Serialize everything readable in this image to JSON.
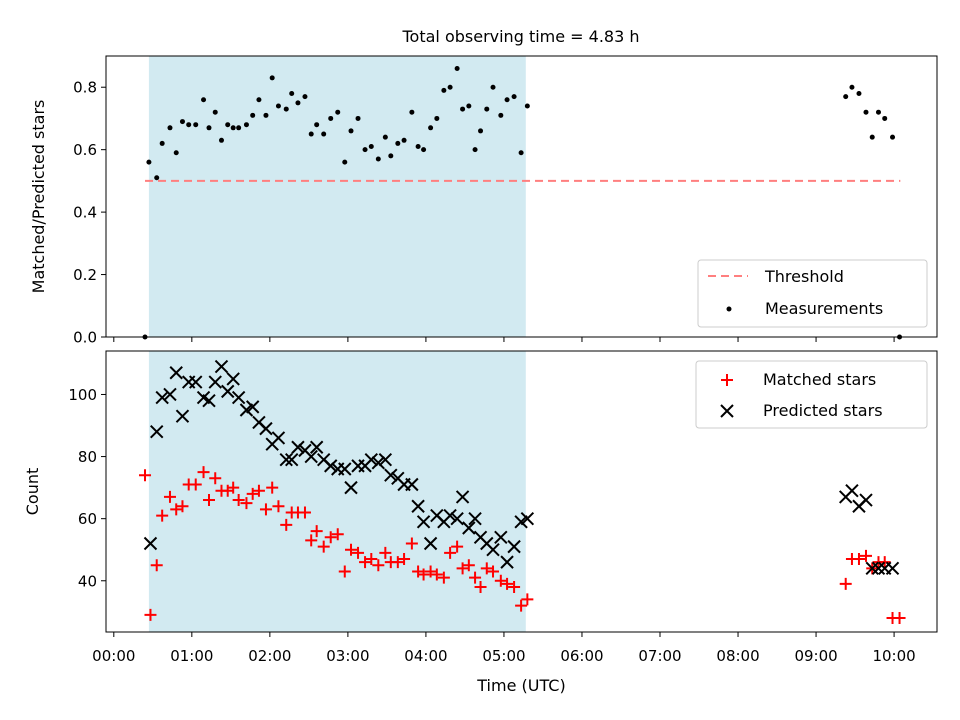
{
  "title": "Total observing time = 4.83 h",
  "colors": {
    "shade": "#add8e6",
    "threshold": "#ff7f7f",
    "matched": "#ff0000",
    "predicted": "#000000",
    "measurement": "#000000"
  },
  "chart_data": [
    {
      "type": "scatter",
      "panel": "top",
      "ylabel": "Matched/Predicted stars",
      "xlim": [
        -0.1,
        10.55
      ],
      "ylim": [
        0,
        0.9
      ],
      "yticks": [
        0.0,
        0.2,
        0.4,
        0.6,
        0.8
      ],
      "ytick_labels": [
        "0.0",
        "0.2",
        "0.4",
        "0.6",
        "0.8"
      ],
      "grid": false,
      "legend_position": "lower right",
      "shaded_interval": [
        0.45,
        5.28
      ],
      "threshold": {
        "name": "Threshold",
        "y": 0.5,
        "x": [
          0.4,
          10.08
        ]
      },
      "series": [
        {
          "name": "Measurements",
          "marker": "dot",
          "x": [
            0.4,
            0.45,
            0.55,
            0.62,
            0.72,
            0.8,
            0.88,
            0.96,
            1.05,
            1.15,
            1.22,
            1.3,
            1.38,
            1.46,
            1.53,
            1.6,
            1.7,
            1.78,
            1.86,
            1.95,
            2.03,
            2.11,
            2.21,
            2.28,
            2.36,
            2.45,
            2.53,
            2.6,
            2.69,
            2.78,
            2.87,
            2.96,
            3.04,
            3.13,
            3.22,
            3.3,
            3.39,
            3.48,
            3.55,
            3.64,
            3.72,
            3.82,
            3.9,
            3.97,
            4.06,
            4.14,
            4.23,
            4.31,
            4.4,
            4.47,
            4.55,
            4.63,
            4.7,
            4.78,
            4.86,
            4.96,
            5.04,
            5.13,
            5.22,
            5.3,
            9.38,
            9.46,
            9.55,
            9.64,
            9.72,
            9.8,
            9.88,
            9.98,
            10.07
          ],
          "y": [
            0.0,
            0.56,
            0.51,
            0.62,
            0.67,
            0.59,
            0.69,
            0.68,
            0.68,
            0.76,
            0.67,
            0.72,
            0.63,
            0.68,
            0.67,
            0.67,
            0.68,
            0.71,
            0.76,
            0.71,
            0.83,
            0.74,
            0.73,
            0.78,
            0.75,
            0.77,
            0.65,
            0.68,
            0.65,
            0.7,
            0.72,
            0.56,
            0.66,
            0.7,
            0.6,
            0.61,
            0.57,
            0.64,
            0.58,
            0.62,
            0.63,
            0.72,
            0.61,
            0.6,
            0.67,
            0.7,
            0.79,
            0.8,
            0.86,
            0.73,
            0.74,
            0.6,
            0.66,
            0.73,
            0.8,
            0.71,
            0.76,
            0.77,
            0.59,
            0.74,
            0.77,
            0.8,
            0.78,
            0.72,
            0.64,
            0.72,
            0.7,
            0.64,
            0.0
          ]
        }
      ]
    },
    {
      "type": "scatter",
      "panel": "bottom",
      "xlabel": "Time (UTC)",
      "ylabel": "Count",
      "xlim": [
        -0.1,
        10.55
      ],
      "ylim": [
        23.5,
        114
      ],
      "xticks": [
        0,
        1,
        2,
        3,
        4,
        5,
        6,
        7,
        8,
        9,
        10
      ],
      "xtick_labels": [
        "00:00",
        "01:00",
        "02:00",
        "03:00",
        "04:00",
        "05:00",
        "06:00",
        "07:00",
        "08:00",
        "09:00",
        "10:00"
      ],
      "yticks": [
        40,
        60,
        80,
        100
      ],
      "ytick_labels": [
        "40",
        "60",
        "80",
        "100"
      ],
      "grid": false,
      "legend_position": "upper right",
      "shaded_interval": [
        0.45,
        5.28
      ],
      "series": [
        {
          "name": "Matched stars",
          "marker": "plus",
          "x": [
            0.4,
            0.47,
            0.55,
            0.62,
            0.72,
            0.8,
            0.88,
            0.96,
            1.05,
            1.15,
            1.22,
            1.3,
            1.38,
            1.46,
            1.53,
            1.6,
            1.7,
            1.78,
            1.86,
            1.95,
            2.03,
            2.11,
            2.21,
            2.28,
            2.36,
            2.45,
            2.53,
            2.6,
            2.69,
            2.78,
            2.87,
            2.96,
            3.04,
            3.13,
            3.22,
            3.3,
            3.39,
            3.48,
            3.55,
            3.64,
            3.72,
            3.82,
            3.9,
            3.97,
            4.06,
            4.14,
            4.23,
            4.31,
            4.4,
            4.47,
            4.55,
            4.63,
            4.7,
            4.78,
            4.86,
            4.96,
            5.04,
            5.13,
            5.22,
            5.3,
            9.38,
            9.46,
            9.55,
            9.64,
            9.72,
            9.8,
            9.88,
            9.98,
            10.07
          ],
          "y": [
            74,
            29,
            45,
            61,
            67,
            63,
            64,
            71,
            71,
            75,
            66,
            73,
            69,
            69,
            70,
            66,
            65,
            68,
            69,
            63,
            70,
            64,
            58,
            62,
            62,
            62,
            53,
            56,
            51,
            54,
            55,
            43,
            50,
            49,
            46,
            47,
            45,
            49,
            46,
            46,
            47,
            52,
            43,
            42,
            43,
            42,
            41,
            49,
            51,
            44,
            45,
            41,
            38,
            44,
            43,
            40,
            39,
            38,
            32,
            34,
            39,
            47,
            47,
            48,
            44,
            46,
            46,
            28,
            28
          ]
        },
        {
          "name": "Predicted stars",
          "marker": "x",
          "x": [
            0.47,
            0.55,
            0.62,
            0.72,
            0.8,
            0.88,
            0.96,
            1.05,
            1.15,
            1.22,
            1.3,
            1.38,
            1.46,
            1.53,
            1.6,
            1.7,
            1.78,
            1.86,
            1.95,
            2.03,
            2.11,
            2.21,
            2.28,
            2.36,
            2.45,
            2.53,
            2.6,
            2.69,
            2.78,
            2.87,
            2.96,
            3.04,
            3.13,
            3.22,
            3.3,
            3.39,
            3.48,
            3.55,
            3.64,
            3.72,
            3.82,
            3.9,
            3.97,
            4.06,
            4.14,
            4.23,
            4.31,
            4.4,
            4.47,
            4.55,
            4.63,
            4.7,
            4.78,
            4.86,
            4.96,
            5.04,
            5.13,
            5.22,
            5.3,
            9.38,
            9.46,
            9.55,
            9.64,
            9.72,
            9.8,
            9.88,
            9.98
          ],
          "y": [
            52,
            88,
            99,
            100,
            107,
            93,
            104,
            104,
            99,
            98,
            104,
            109,
            101,
            105,
            99,
            95,
            96,
            91,
            89,
            84,
            86,
            79,
            79,
            83,
            82,
            80,
            83,
            79,
            77,
            76,
            76,
            70,
            77,
            77,
            79,
            78,
            79,
            74,
            73,
            71,
            71,
            64,
            59,
            52,
            61,
            59,
            61,
            60,
            67,
            57,
            60,
            54,
            52,
            50,
            54,
            46,
            51,
            59,
            60,
            67,
            69,
            64,
            66,
            44,
            44,
            44,
            44
          ]
        }
      ]
    }
  ]
}
